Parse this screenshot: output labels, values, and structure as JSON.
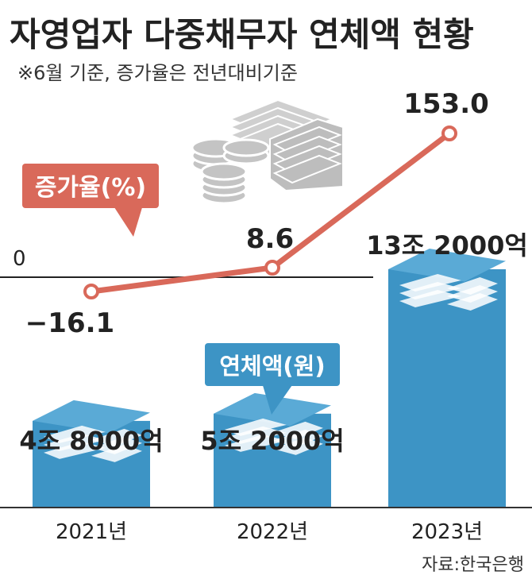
{
  "title": "자영업자 다중채무자 연체액 현황",
  "note": "※6월 기준, 증가율은 전년대비기준",
  "source": "자료:한국은행",
  "colors": {
    "rate_line": "#d9695a",
    "amount_bar": "#3d94c5",
    "label_box_rate": "#d9695a",
    "label_box_amount": "#3d94c5",
    "icon_gray": "#bfbfbf"
  },
  "chart_data": {
    "type": "bar",
    "categories": [
      "2021년",
      "2022년",
      "2023년"
    ],
    "series": [
      {
        "name": "연체액(원)",
        "type": "bar",
        "values": [
          4.8,
          5.2,
          13.2
        ],
        "value_labels": [
          "4조 8000억",
          "5조 2000억",
          "13조 2000억"
        ]
      },
      {
        "name": "증가율(%)",
        "type": "line",
        "values": [
          -16.1,
          8.6,
          153.0
        ],
        "value_labels": [
          "−16.1",
          "8.6",
          "153.0"
        ]
      }
    ],
    "rate_zero_label": "0",
    "legend": {
      "rate_label": "증가율(%)",
      "amount_label": "연체액(원)"
    }
  }
}
